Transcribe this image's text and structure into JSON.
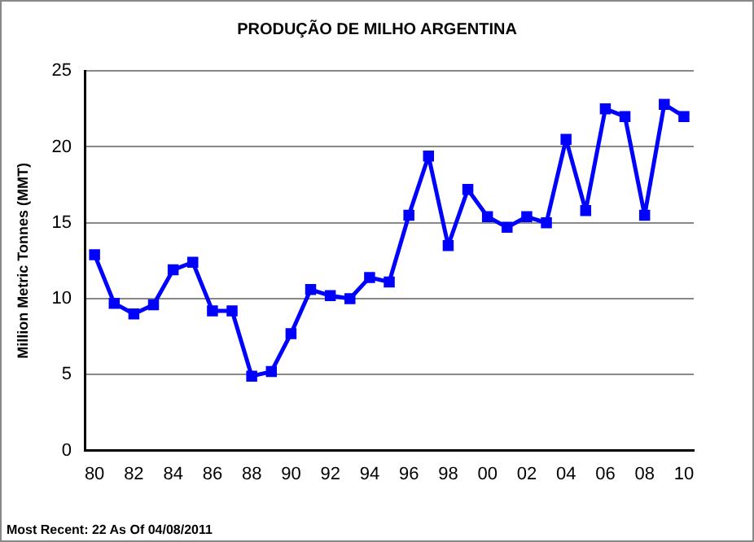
{
  "chart_data": {
    "type": "line",
    "title": "PRODUÇÃO DE MILHO ARGENTINA",
    "ylabel": "Million Metric Tonnes (MMT)",
    "categories": [
      "80",
      null,
      "82",
      null,
      "84",
      null,
      "86",
      null,
      "88",
      null,
      "90",
      null,
      "92",
      null,
      "94",
      null,
      "96",
      null,
      "98",
      null,
      "00",
      null,
      "02",
      null,
      "04",
      null,
      "06",
      null,
      "08",
      null,
      "10"
    ],
    "series": [
      {
        "color": "#0000ff",
        "values": [
          12.9,
          9.7,
          9.0,
          9.6,
          11.9,
          12.4,
          9.2,
          9.2,
          4.9,
          5.2,
          7.7,
          10.6,
          10.2,
          10.0,
          11.4,
          11.1,
          15.5,
          19.4,
          13.5,
          17.2,
          15.4,
          14.7,
          15.4,
          15.0,
          20.5,
          15.8,
          22.5,
          22.0,
          15.5,
          22.8,
          22.0
        ]
      }
    ],
    "ylim": [
      0,
      25
    ],
    "yticks": [
      0,
      5,
      10,
      15,
      20,
      25
    ],
    "grid": "y",
    "legend": false,
    "marker": "square",
    "line_style": "solid",
    "annotations": [
      "Most Recent: 22 As Of 04/08/2011"
    ]
  }
}
